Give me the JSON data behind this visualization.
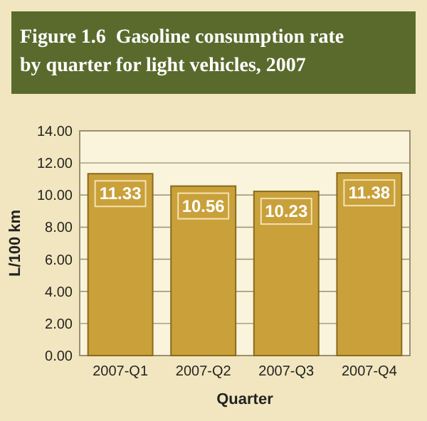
{
  "chart_data": {
    "type": "bar",
    "title": "Figure 1.6  Gasoline consumption rate by quarter for light vehicles, 2007",
    "categories": [
      "2007-Q1",
      "2007-Q2",
      "2007-Q3",
      "2007-Q4"
    ],
    "values": [
      11.33,
      10.56,
      10.23,
      11.38
    ],
    "color": "#c9a03a",
    "data_labels": true,
    "ylim": [
      0,
      14
    ],
    "yticks": [
      {
        "value": 0,
        "label": "0.00"
      },
      {
        "value": 2,
        "label": "2.00"
      },
      {
        "value": 4,
        "label": "4.00"
      },
      {
        "value": 6,
        "label": "6.00"
      },
      {
        "value": 8,
        "label": "8.00"
      },
      {
        "value": 10,
        "label": "10.00"
      },
      {
        "value": 12,
        "label": "12.00"
      },
      {
        "value": 14,
        "label": "14.00"
      }
    ],
    "grid": "y",
    "ylabel": "L/100 km",
    "xlabel": "Quarter"
  }
}
